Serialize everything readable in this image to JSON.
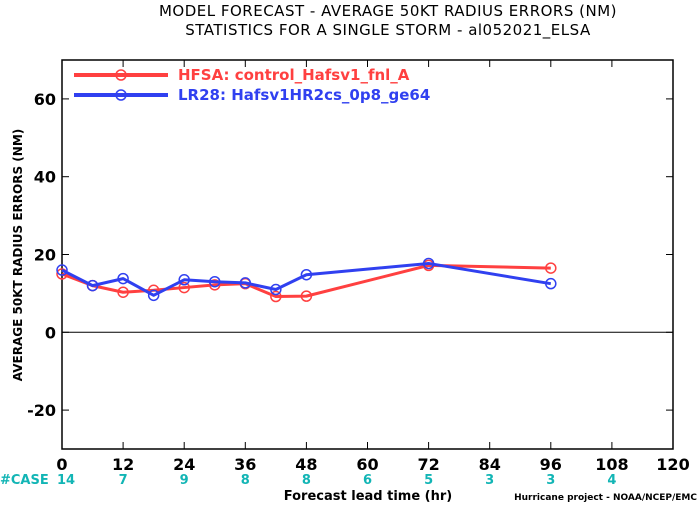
{
  "title_line1": "MODEL FORECAST - AVERAGE 50KT RADIUS ERRORS (NM)",
  "title_line2": "STATISTICS FOR A SINGLE STORM - al052021_ELSA",
  "credit": "Hurricane project - NOAA/NCEP/EMC",
  "case_label": "#CASE",
  "case_counts": [
    {
      "x": 0,
      "label": "14"
    },
    {
      "x": 12,
      "label": "7"
    },
    {
      "x": 24,
      "label": "9"
    },
    {
      "x": 36,
      "label": "8"
    },
    {
      "x": 48,
      "label": "8"
    },
    {
      "x": 60,
      "label": "6"
    },
    {
      "x": 72,
      "label": "5"
    },
    {
      "x": 84,
      "label": "3"
    },
    {
      "x": 96,
      "label": "3"
    },
    {
      "x": 108,
      "label": "4"
    }
  ],
  "chart_data": {
    "type": "line",
    "title": "MODEL FORECAST - AVERAGE 50KT RADIUS ERRORS (NM)",
    "subtitle": "STATISTICS FOR A SINGLE STORM - al052021_ELSA",
    "xlabel": "Forecast lead time (hr)",
    "ylabel": "AVERAGE 50KT RADIUS ERRORS (NM)",
    "xlim": [
      0,
      120
    ],
    "ylim": [
      -30,
      70
    ],
    "xticks": [
      0,
      12,
      24,
      36,
      48,
      60,
      72,
      84,
      96,
      108,
      120
    ],
    "yticks": [
      -20,
      0,
      20,
      40,
      60
    ],
    "zero_line": true,
    "grid": false,
    "legend_position": "top-left",
    "series": [
      {
        "name": "HFSA: control_Hafsv1_fnl_A",
        "color": "#ff4040",
        "x": [
          0,
          6,
          12,
          18,
          24,
          30,
          36,
          42,
          48,
          72,
          96
        ],
        "y": [
          15.0,
          12.0,
          10.3,
          10.8,
          11.5,
          12.2,
          12.5,
          9.2,
          9.3,
          17.2,
          16.5
        ]
      },
      {
        "name": "LR28: Hafsv1HR2cs_0p8_ge64",
        "color": "#3040f0",
        "x": [
          0,
          6,
          12,
          18,
          24,
          30,
          36,
          42,
          48,
          72,
          96
        ],
        "y": [
          16.0,
          12.0,
          13.8,
          9.5,
          13.5,
          13.0,
          12.7,
          11.0,
          14.8,
          17.7,
          12.5
        ]
      }
    ]
  }
}
